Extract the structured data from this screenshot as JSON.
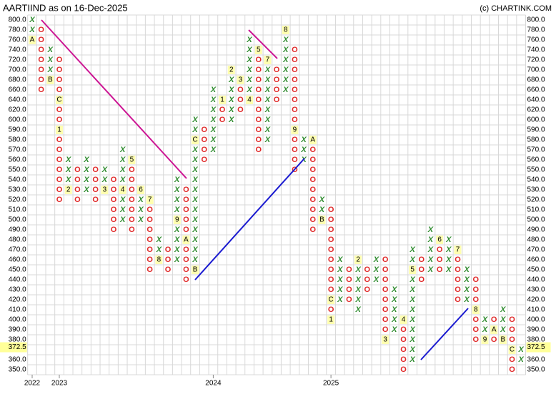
{
  "chart_data": {
    "type": "pnf",
    "title": "AARTIIND as on 16-Dec-2025",
    "credit": "(c) CHARTINK.COM",
    "colors": {
      "X": "#2e8b2e",
      "O": "#e02828",
      "month_bg": "#ffffb0"
    },
    "last_price": {
      "value": 372.5,
      "label": "372.5"
    },
    "yticks": [
      {
        "value": 800,
        "label": "800.0"
      },
      {
        "value": 780,
        "label": "780.0"
      },
      {
        "value": 760,
        "label": "760.0"
      },
      {
        "value": 740,
        "label": "740.0"
      },
      {
        "value": 720,
        "label": "720.0"
      },
      {
        "value": 700,
        "label": "700.0"
      },
      {
        "value": 680,
        "label": "680.0"
      },
      {
        "value": 660,
        "label": "660.0"
      },
      {
        "value": 640,
        "label": "640.0"
      },
      {
        "value": 620,
        "label": "620.0"
      },
      {
        "value": 600,
        "label": "600.0"
      },
      {
        "value": 590,
        "label": "590.0"
      },
      {
        "value": 580,
        "label": "580.0"
      },
      {
        "value": 570,
        "label": "570.0"
      },
      {
        "value": 560,
        "label": "560.0"
      },
      {
        "value": 550,
        "label": "550.0"
      },
      {
        "value": 540,
        "label": "540.0"
      },
      {
        "value": 530,
        "label": "530.0"
      },
      {
        "value": 520,
        "label": "520.0"
      },
      {
        "value": 510,
        "label": "510.0"
      },
      {
        "value": 500,
        "label": "500.0"
      },
      {
        "value": 490,
        "label": "490.0"
      },
      {
        "value": 480,
        "label": "480.0"
      },
      {
        "value": 470,
        "label": "470.0"
      },
      {
        "value": 460,
        "label": "460.0"
      },
      {
        "value": 450,
        "label": "450.0"
      },
      {
        "value": 440,
        "label": "440.0"
      },
      {
        "value": 430,
        "label": "430.0"
      },
      {
        "value": 420,
        "label": "420.0"
      },
      {
        "value": 410,
        "label": "410.0"
      },
      {
        "value": 400,
        "label": "400.0"
      },
      {
        "value": 390,
        "label": "390.0"
      },
      {
        "value": 380,
        "label": "380.0"
      },
      {
        "value": 370,
        "label": "370.0"
      },
      {
        "value": 360,
        "label": "360.0"
      },
      {
        "value": 350,
        "label": "350.0"
      }
    ],
    "columns": [
      {
        "type": "X",
        "low": 760,
        "high": 800,
        "months": [
          {
            "price": 760,
            "label": "A"
          }
        ],
        "year": "2022"
      },
      {
        "type": "O",
        "low": 660,
        "high": 780,
        "months": []
      },
      {
        "type": "X",
        "low": 680,
        "high": 740,
        "months": [
          {
            "price": 680,
            "label": "B"
          }
        ]
      },
      {
        "type": "O",
        "low": 520,
        "high": 720,
        "months": [
          {
            "price": 640,
            "label": "C"
          },
          {
            "price": 590,
            "label": "1"
          }
        ],
        "year": "2023"
      },
      {
        "type": "X",
        "low": 530,
        "high": 560,
        "months": [
          {
            "price": 530,
            "label": "2"
          }
        ]
      },
      {
        "type": "O",
        "low": 520,
        "high": 550,
        "months": []
      },
      {
        "type": "X",
        "low": 530,
        "high": 560,
        "months": []
      },
      {
        "type": "O",
        "low": 520,
        "high": 550,
        "months": []
      },
      {
        "type": "X",
        "low": 530,
        "high": 550,
        "months": [
          {
            "price": 530,
            "label": "3"
          }
        ]
      },
      {
        "type": "O",
        "low": 490,
        "high": 540,
        "months": []
      },
      {
        "type": "X",
        "low": 500,
        "high": 570,
        "months": [
          {
            "price": 530,
            "label": "4"
          }
        ]
      },
      {
        "type": "O",
        "low": 490,
        "high": 560,
        "months": [
          {
            "price": 560,
            "label": "5"
          }
        ]
      },
      {
        "type": "X",
        "low": 500,
        "high": 530,
        "months": [
          {
            "price": 530,
            "label": "6"
          }
        ]
      },
      {
        "type": "O",
        "low": 450,
        "high": 520,
        "months": [
          {
            "price": 520,
            "label": "7"
          }
        ]
      },
      {
        "type": "X",
        "low": 460,
        "high": 480,
        "months": [
          {
            "price": 460,
            "label": "8"
          }
        ]
      },
      {
        "type": "O",
        "low": 450,
        "high": 470,
        "months": []
      },
      {
        "type": "X",
        "low": 460,
        "high": 540,
        "months": [
          {
            "price": 500,
            "label": "9"
          }
        ]
      },
      {
        "type": "O",
        "low": 440,
        "high": 530,
        "months": [
          {
            "price": 480,
            "label": "A"
          }
        ]
      },
      {
        "type": "X",
        "low": 450,
        "high": 600,
        "months": [
          {
            "price": 450,
            "label": "B"
          },
          {
            "price": 580,
            "label": "C"
          }
        ]
      },
      {
        "type": "O",
        "low": 560,
        "high": 590,
        "months": []
      },
      {
        "type": "X",
        "low": 570,
        "high": 660,
        "months": [],
        "year": "2024"
      },
      {
        "type": "O",
        "low": 600,
        "high": 640,
        "months": [
          {
            "price": 640,
            "label": "1"
          }
        ]
      },
      {
        "type": "X",
        "low": 600,
        "high": 700,
        "months": [
          {
            "price": 700,
            "label": "2"
          }
        ]
      },
      {
        "type": "O",
        "low": 620,
        "high": 680,
        "months": [
          {
            "price": 680,
            "label": "3"
          }
        ]
      },
      {
        "type": "X",
        "low": 640,
        "high": 760,
        "months": [
          {
            "price": 640,
            "label": "4"
          }
        ]
      },
      {
        "type": "O",
        "low": 570,
        "high": 740,
        "months": [
          {
            "price": 740,
            "label": "5"
          },
          {
            "price": 610,
            "label": "6"
          }
        ]
      },
      {
        "type": "X",
        "low": 580,
        "high": 720,
        "months": [
          {
            "price": 720,
            "label": "7"
          }
        ]
      },
      {
        "type": "O",
        "low": 640,
        "high": 700,
        "months": []
      },
      {
        "type": "X",
        "low": 660,
        "high": 780,
        "months": [
          {
            "price": 780,
            "label": "8"
          }
        ]
      },
      {
        "type": "O",
        "low": 550,
        "high": 740,
        "months": [
          {
            "price": 590,
            "label": "9"
          }
        ]
      },
      {
        "type": "X",
        "low": 560,
        "high": 580,
        "months": []
      },
      {
        "type": "O",
        "low": 490,
        "high": 580,
        "months": [
          {
            "price": 580,
            "label": "A"
          }
        ]
      },
      {
        "type": "X",
        "low": 500,
        "high": 520,
        "months": [
          {
            "price": 500,
            "label": "B"
          }
        ]
      },
      {
        "type": "O",
        "low": 400,
        "high": 510,
        "months": [
          {
            "price": 420,
            "label": "C"
          },
          {
            "price": 400,
            "label": "1"
          }
        ],
        "year": "2025"
      },
      {
        "type": "X",
        "low": 420,
        "high": 460,
        "months": []
      },
      {
        "type": "O",
        "low": 420,
        "high": 450,
        "months": []
      },
      {
        "type": "X",
        "low": 410,
        "high": 460,
        "months": [
          {
            "price": 460,
            "label": "2"
          }
        ]
      },
      {
        "type": "O",
        "low": 430,
        "high": 450,
        "months": []
      },
      {
        "type": "X",
        "low": 440,
        "high": 460,
        "months": []
      },
      {
        "type": "O",
        "low": 380,
        "high": 460,
        "months": [
          {
            "price": 380,
            "label": "3"
          }
        ]
      },
      {
        "type": "X",
        "low": 390,
        "high": 430,
        "months": []
      },
      {
        "type": "O",
        "low": 350,
        "high": 400,
        "months": [
          {
            "price": 400,
            "label": "4"
          }
        ]
      },
      {
        "type": "X",
        "low": 360,
        "high": 470,
        "months": [
          {
            "price": 450,
            "label": "5"
          }
        ]
      },
      {
        "type": "O",
        "low": 440,
        "high": 460,
        "months": []
      },
      {
        "type": "X",
        "low": 450,
        "high": 490,
        "months": []
      },
      {
        "type": "O",
        "low": 450,
        "high": 480,
        "months": [
          {
            "price": 480,
            "label": "6"
          }
        ]
      },
      {
        "type": "X",
        "low": 450,
        "high": 480,
        "months": []
      },
      {
        "type": "O",
        "low": 420,
        "high": 470,
        "months": [
          {
            "price": 470,
            "label": "7"
          }
        ]
      },
      {
        "type": "X",
        "low": 420,
        "high": 450,
        "months": []
      },
      {
        "type": "O",
        "low": 380,
        "high": 440,
        "months": [
          {
            "price": 410,
            "label": "8"
          }
        ]
      },
      {
        "type": "X",
        "low": 380,
        "high": 400,
        "months": [
          {
            "price": 380,
            "label": "9"
          }
        ]
      },
      {
        "type": "O",
        "low": 380,
        "high": 400,
        "months": [
          {
            "price": 390,
            "label": "A"
          }
        ]
      },
      {
        "type": "X",
        "low": 380,
        "high": 410,
        "months": [
          {
            "price": 380,
            "label": "B"
          }
        ]
      },
      {
        "type": "O",
        "low": 350,
        "high": 400,
        "months": [
          {
            "price": 370,
            "label": "C"
          }
        ]
      },
      {
        "type": "X",
        "low": 360,
        "high": 370,
        "months": []
      }
    ]
  }
}
